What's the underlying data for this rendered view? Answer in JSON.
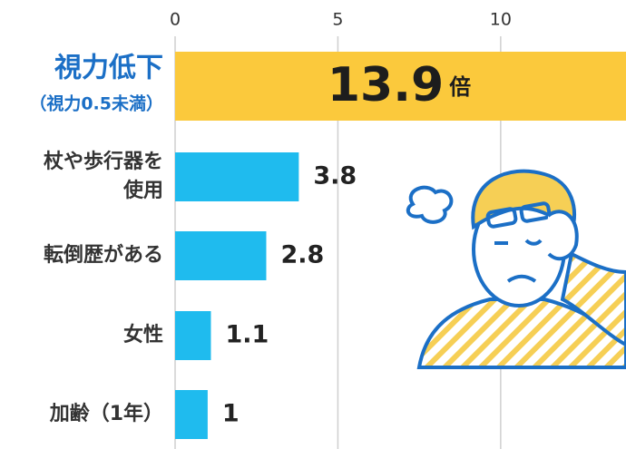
{
  "chart_data": {
    "type": "barh",
    "categories": [
      [
        "視力低下",
        "（視力0.5未満）"
      ],
      [
        "杖や歩行器を",
        "使用"
      ],
      [
        "転倒歴がある"
      ],
      [
        "女性"
      ],
      [
        "加齢（1年）"
      ]
    ],
    "values": [
      13.9,
      3.8,
      2.8,
      1.1,
      1
    ],
    "value_labels": [
      "13.9倍",
      "3.8",
      "2.8",
      "1.1",
      "1"
    ],
    "colors": [
      "#fbc93c",
      "#1fbbee",
      "#1fbbee",
      "#1fbbee",
      "#1fbbee"
    ],
    "xlim": [
      0,
      13.85
    ],
    "xticks": [
      0,
      5,
      10
    ],
    "grid": true
  }
}
